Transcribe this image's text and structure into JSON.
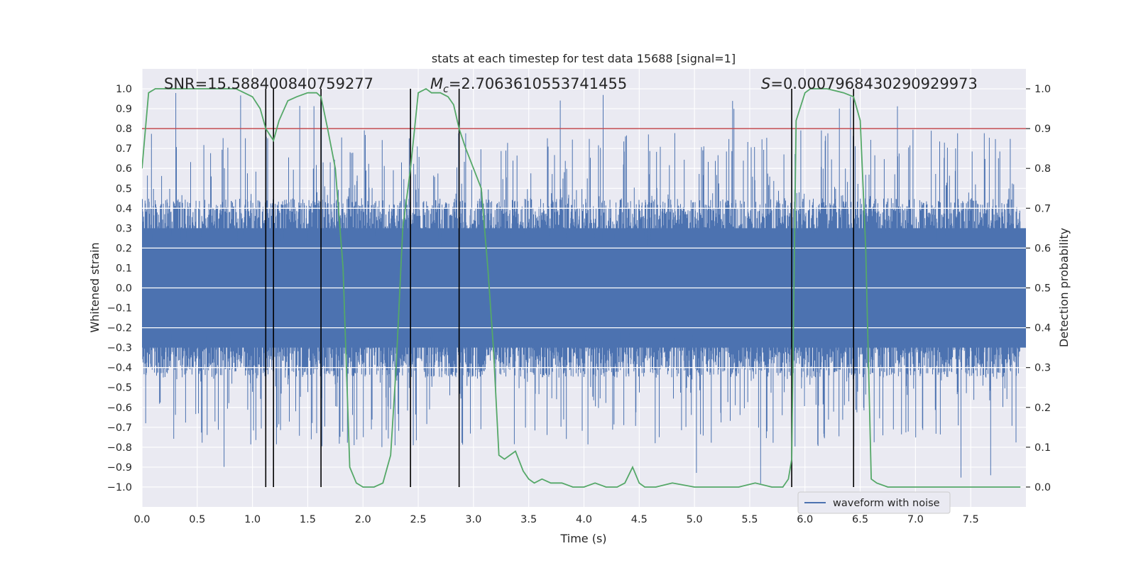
{
  "chart_data": {
    "type": "line",
    "title": "stats at each timestep for test data 15688 [signal=1]",
    "xlabel": "Time (s)",
    "ylabel_left": "Whitened strain",
    "ylabel_right": "Detection probability",
    "xlim": [
      0.0,
      8.0
    ],
    "ylim_left": [
      -1.1,
      1.1
    ],
    "ylim_right": [
      -0.05,
      1.05
    ],
    "x_ticks": [
      0.0,
      0.5,
      1.0,
      1.5,
      2.0,
      2.5,
      3.0,
      3.5,
      4.0,
      4.5,
      5.0,
      5.5,
      6.0,
      6.5,
      7.0,
      7.5
    ],
    "x_tick_labels": [
      "0.0",
      "0.5",
      "1.0",
      "1.5",
      "2.0",
      "2.5",
      "3.0",
      "3.5",
      "4.0",
      "4.5",
      "5.0",
      "5.5",
      "6.0",
      "6.5",
      "7.0",
      "7.5"
    ],
    "y_left_ticks": [
      1.0,
      0.9,
      0.8,
      0.7,
      0.6,
      0.5,
      0.4,
      0.3,
      0.2,
      0.1,
      0.0,
      -0.1,
      -0.2,
      -0.3,
      -0.4,
      -0.5,
      -0.6,
      -0.7,
      -0.8,
      -0.9,
      -1.0
    ],
    "y_left_tick_labels": [
      "1.0",
      "0.9",
      "0.8",
      "0.7",
      "0.6",
      "0.5",
      "0.4",
      "0.3",
      "0.2",
      "0.1",
      "0.0",
      "−0.1",
      "−0.2",
      "−0.3",
      "−0.4",
      "−0.5",
      "−0.6",
      "−0.7",
      "−0.8",
      "−0.9",
      "−1.0"
    ],
    "y_right_ticks": [
      1.0,
      0.9,
      0.8,
      0.7,
      0.6,
      0.5,
      0.4,
      0.3,
      0.2,
      0.1,
      0.0
    ],
    "y_right_tick_labels": [
      "1.0",
      "0.9",
      "0.8",
      "0.7",
      "0.6",
      "0.5",
      "0.4",
      "0.3",
      "0.2",
      "0.1",
      "0.0"
    ],
    "annotations": {
      "snr": "SNR=15.588400840759277",
      "chirp_mass": "=2.7063610553741455",
      "chirp_mass_symbol": "M",
      "chirp_mass_sub": "c",
      "s": "=0.0007968430290929973",
      "s_symbol": "S"
    },
    "legend": {
      "location": "bottom-right",
      "entries": [
        "waveform with noise"
      ]
    },
    "threshold": {
      "axis": "right",
      "value": 0.9,
      "color": "#c44e52"
    },
    "vertical_lines": [
      1.12,
      1.19,
      1.62,
      2.43,
      2.87,
      5.88,
      6.44
    ],
    "waveform": {
      "name": "waveform with noise",
      "color": "#4c72b0",
      "envelope_typical": 0.45,
      "envelope_max": 0.98,
      "spike_min": -0.99
    },
    "detection_probability": {
      "name": "Detection probability",
      "color": "#55a868",
      "x": [
        0.0,
        0.06,
        0.12,
        0.25,
        0.5,
        0.85,
        1.0,
        1.07,
        1.12,
        1.19,
        1.24,
        1.32,
        1.4,
        1.5,
        1.58,
        1.62,
        1.68,
        1.75,
        1.82,
        1.88,
        1.94,
        2.0,
        2.1,
        2.18,
        2.25,
        2.3,
        2.36,
        2.43,
        2.5,
        2.57,
        2.62,
        2.7,
        2.77,
        2.82,
        2.87,
        2.93,
        3.0,
        3.07,
        3.13,
        3.18,
        3.23,
        3.28,
        3.33,
        3.38,
        3.45,
        3.5,
        3.55,
        3.62,
        3.7,
        3.8,
        3.9,
        4.0,
        4.1,
        4.2,
        4.3,
        4.37,
        4.44,
        4.5,
        4.55,
        4.65,
        4.8,
        5.0,
        5.2,
        5.4,
        5.55,
        5.7,
        5.8,
        5.85,
        5.88,
        5.92,
        6.0,
        6.05,
        6.1,
        6.2,
        6.35,
        6.44,
        6.5,
        6.55,
        6.6,
        6.65,
        6.75,
        6.9,
        7.1,
        7.3,
        7.5,
        7.7,
        7.95
      ],
      "y": [
        0.8,
        0.99,
        1.0,
        1.0,
        1.0,
        1.0,
        0.98,
        0.95,
        0.9,
        0.87,
        0.92,
        0.97,
        0.98,
        0.99,
        0.99,
        0.98,
        0.9,
        0.8,
        0.55,
        0.05,
        0.01,
        0.0,
        0.0,
        0.01,
        0.08,
        0.3,
        0.65,
        0.8,
        0.99,
        1.0,
        0.99,
        0.99,
        0.98,
        0.96,
        0.9,
        0.85,
        0.8,
        0.75,
        0.55,
        0.35,
        0.08,
        0.07,
        0.08,
        0.09,
        0.04,
        0.02,
        0.01,
        0.02,
        0.01,
        0.01,
        0.0,
        0.0,
        0.01,
        0.0,
        0.0,
        0.01,
        0.05,
        0.01,
        0.0,
        0.0,
        0.01,
        0.0,
        0.0,
        0.0,
        0.01,
        0.0,
        0.0,
        0.02,
        0.07,
        0.92,
        0.99,
        1.0,
        1.0,
        1.0,
        0.99,
        0.98,
        0.92,
        0.6,
        0.02,
        0.01,
        0.0,
        0.0,
        0.0,
        0.0,
        0.0,
        0.0,
        0.0
      ]
    },
    "grid": true,
    "colors": {
      "background": "#eaeaf2",
      "grid": "#ffffff",
      "vertical_line": "#000000"
    }
  }
}
